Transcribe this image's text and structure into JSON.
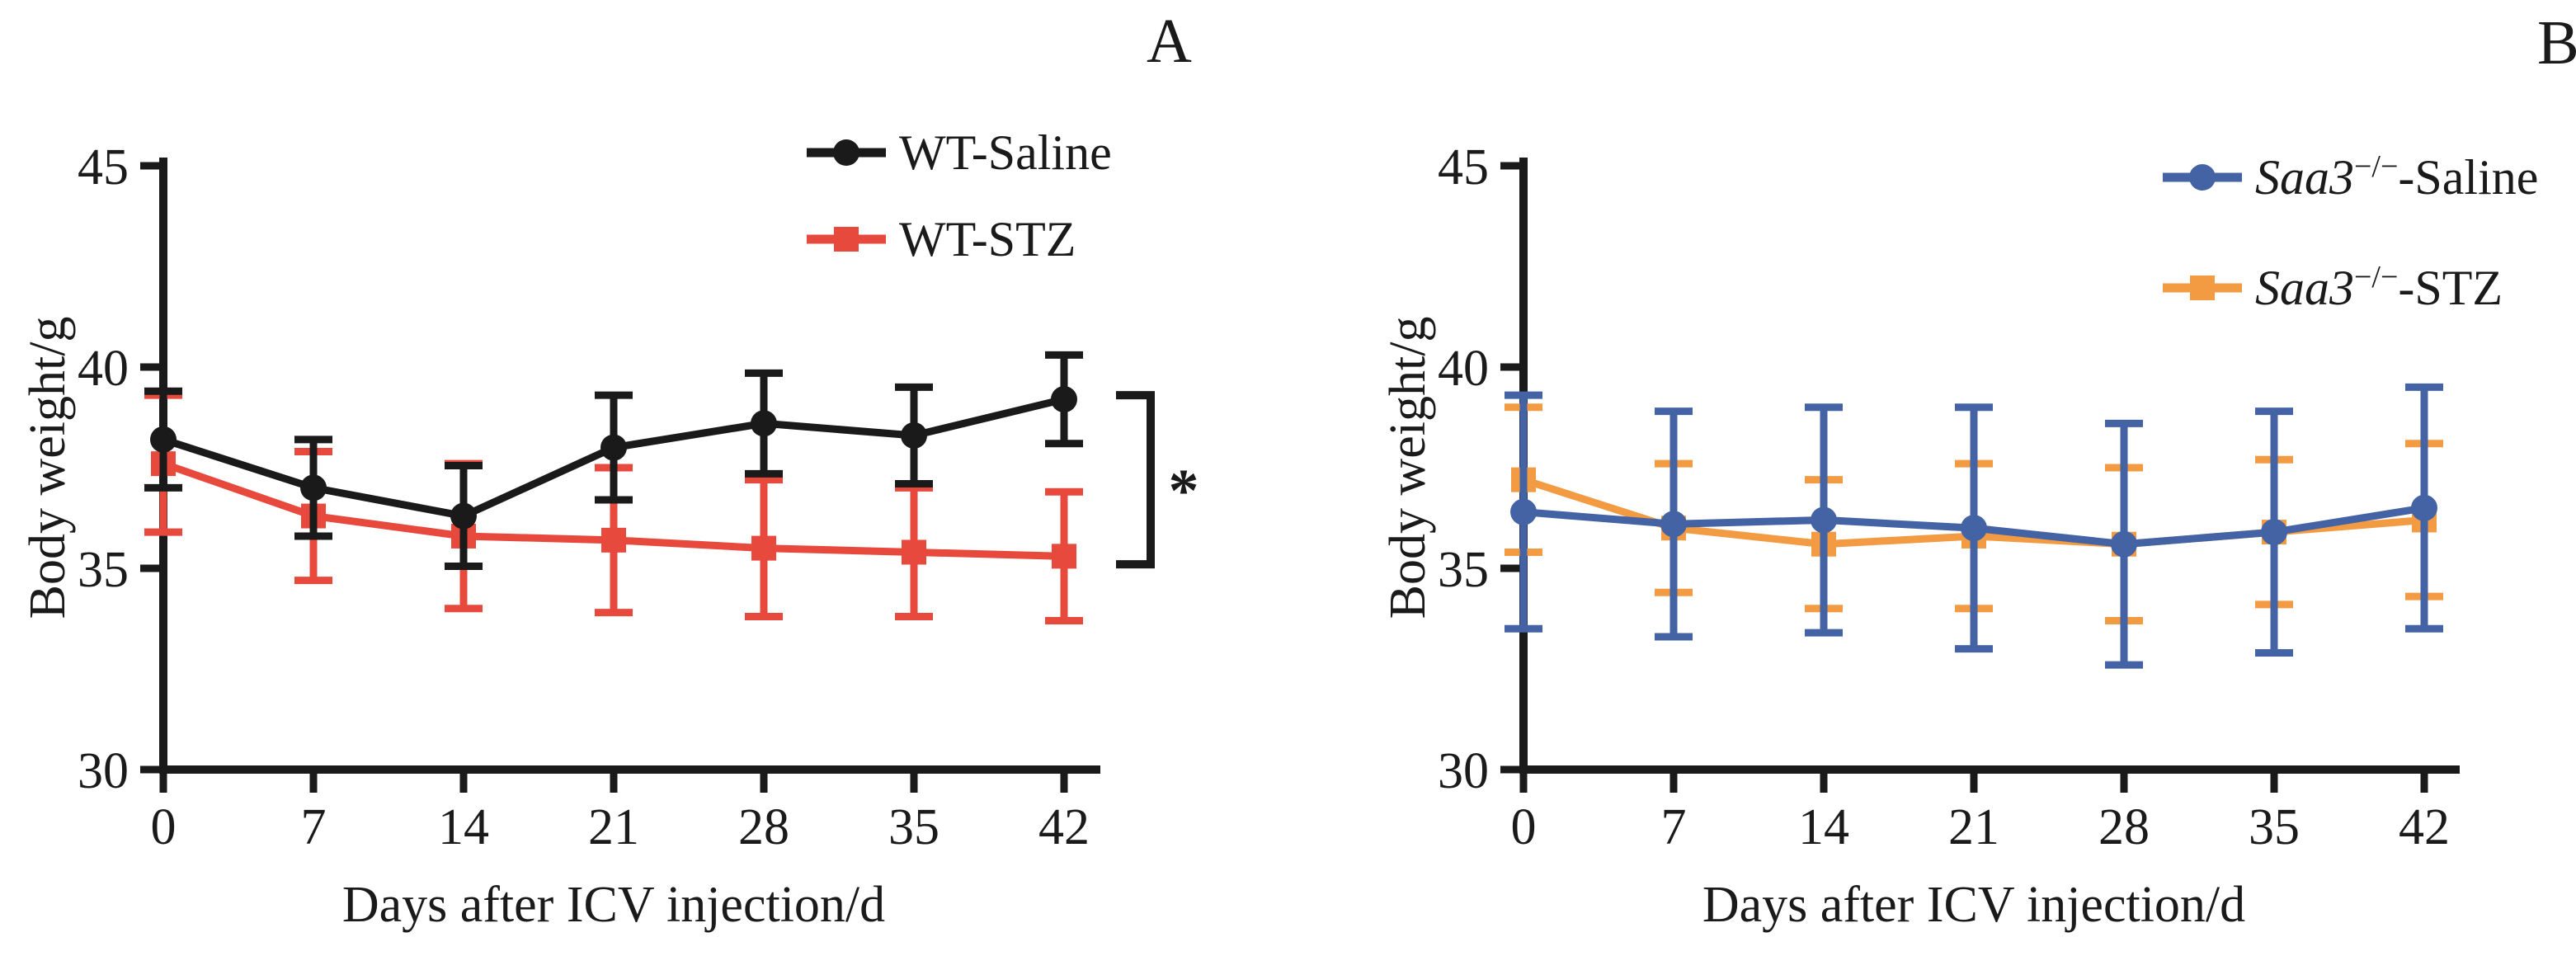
{
  "figure": {
    "panel_letters": [
      "A",
      "B"
    ],
    "background": "#ffffff",
    "colors": {
      "black": "#1a1a1a",
      "red": "#e8493d",
      "blue": "#4463a5",
      "orange": "#f29b43"
    }
  },
  "chart_data": [
    {
      "type": "line",
      "panel": "A",
      "title": "",
      "xlabel": "Days after ICV injection/d",
      "ylabel": "Body weight/g",
      "x": [
        0,
        7,
        14,
        21,
        28,
        35,
        42
      ],
      "xticks": [
        0,
        7,
        14,
        21,
        28,
        35,
        42
      ],
      "yticks": [
        30,
        35,
        40,
        45
      ],
      "ylim": [
        30,
        45
      ],
      "grid": false,
      "legend_position": "top-right",
      "series": [
        {
          "name": "WT-Saline",
          "label_italic": "",
          "label_sup": "",
          "label_text": "WT-Saline",
          "color": "#1a1a1a",
          "marker": "circle",
          "values": [
            38.2,
            37.0,
            36.3,
            38.0,
            38.6,
            38.3,
            39.2
          ],
          "errors": [
            1.2,
            1.2,
            1.25,
            1.3,
            1.25,
            1.2,
            1.1
          ]
        },
        {
          "name": "WT-STZ",
          "label_italic": "",
          "label_sup": "",
          "label_text": "WT-STZ",
          "color": "#e8493d",
          "marker": "square",
          "values": [
            37.6,
            36.3,
            35.8,
            35.7,
            35.5,
            35.4,
            35.3
          ],
          "errors": [
            1.7,
            1.6,
            1.8,
            1.8,
            1.7,
            1.6,
            1.6
          ]
        }
      ],
      "annotation": {
        "symbol": "*",
        "bracket_top_value": 39.3,
        "bracket_bottom_value": 35.1
      }
    },
    {
      "type": "line",
      "panel": "B",
      "title": "",
      "xlabel": "Days after ICV injection/d",
      "ylabel": "Body weight/g",
      "x": [
        0,
        7,
        14,
        21,
        28,
        35,
        42
      ],
      "xticks": [
        0,
        7,
        14,
        21,
        28,
        35,
        42
      ],
      "yticks": [
        30,
        35,
        40,
        45
      ],
      "ylim": [
        30,
        45
      ],
      "grid": false,
      "legend_position": "top-right",
      "series": [
        {
          "name": "Saa3-/- -Saline",
          "label_italic": "Saa3",
          "label_sup": "−/−",
          "label_text": "-Saline",
          "color": "#4463a5",
          "marker": "circle",
          "values": [
            36.4,
            36.1,
            36.2,
            36.0,
            35.6,
            35.9,
            36.5
          ],
          "errors": [
            2.9,
            2.8,
            2.8,
            3.0,
            3.0,
            3.0,
            3.0
          ]
        },
        {
          "name": "Saa3-/- -STZ",
          "label_italic": "Saa3",
          "label_sup": "−/−",
          "label_text": "-STZ",
          "color": "#f29b43",
          "marker": "square",
          "values": [
            37.2,
            36.0,
            35.6,
            35.8,
            35.6,
            35.9,
            36.2
          ],
          "errors": [
            1.8,
            1.6,
            1.6,
            1.8,
            1.9,
            1.8,
            1.9
          ]
        }
      ]
    }
  ]
}
